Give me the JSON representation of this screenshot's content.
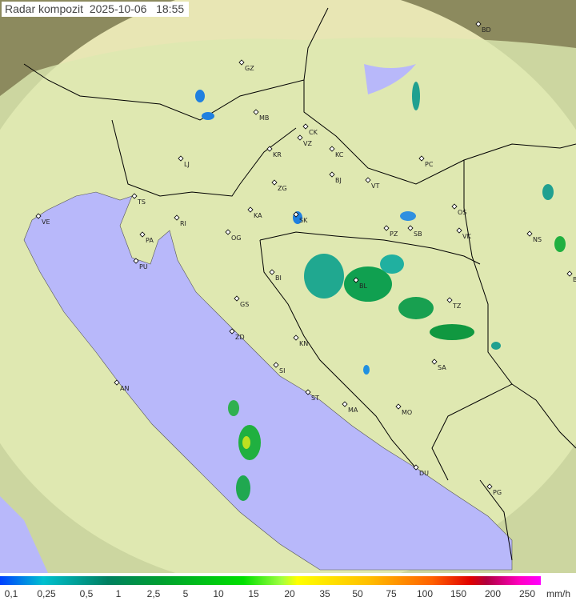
{
  "title": "Radar kompozit  2025-10-06   18:55",
  "colors": {
    "sea": "#b8b8fa",
    "land": "#dfe8b0",
    "outside": "#8c8a5e",
    "coverage": "#e8e6b4",
    "border": "#000000"
  },
  "cities": [
    "GZ",
    "BD",
    "MB",
    "CK",
    "VZ",
    "KR",
    "KC",
    "PC",
    "LJ",
    "BJ",
    "VT",
    "ZG",
    "TS",
    "VE",
    "RI",
    "SK",
    "KA",
    "OS",
    "PZ",
    "SB",
    "VK",
    "NS",
    "PA",
    "OG",
    "PU",
    "BG",
    "BI",
    "BL",
    "GS",
    "TZ",
    "ZD",
    "KN",
    "SA",
    "SI",
    "AN",
    "ST",
    "MA",
    "MO",
    "DU",
    "PG"
  ],
  "legend": {
    "labels": [
      "0,1",
      "0,25",
      "0,5",
      "1",
      "2,5",
      "5",
      "10",
      "15",
      "20",
      "35",
      "50",
      "75",
      "100",
      "150",
      "200",
      "250"
    ],
    "unit": "mm/h"
  }
}
